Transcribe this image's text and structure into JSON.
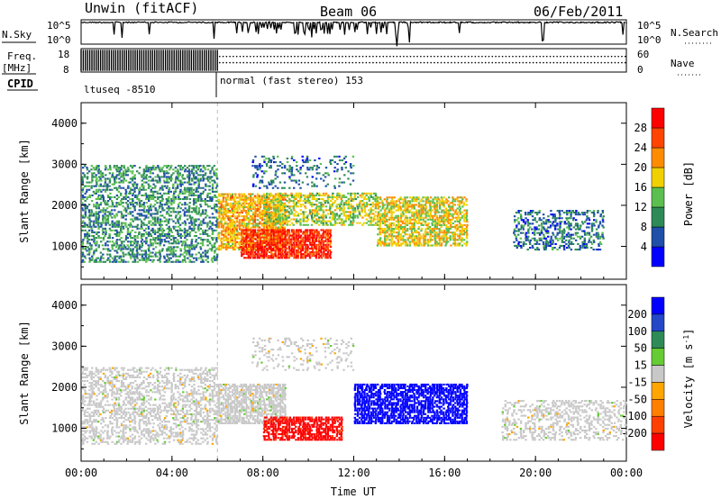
{
  "header": {
    "station": "Unwin (fitACF)",
    "beam": "Beam 06",
    "date": "06/Feb/2011"
  },
  "sky_panel": {
    "left_label": "N.Sky",
    "left_ticks": [
      "10^5",
      "10^0"
    ],
    "right_label": "N.Search",
    "right_ticks": [
      "10^5",
      "10^0"
    ]
  },
  "freq_panel": {
    "left_label_1": "Freq.",
    "left_label_2": "[MHz]",
    "left_ticks": [
      "18",
      "8"
    ],
    "right_label": "Nave",
    "right_ticks": [
      "60",
      "0"
    ]
  },
  "cpid": {
    "label": "CPID",
    "modes": [
      {
        "name": "ltuseq -8510",
        "start_hour": 0,
        "end_hour": 6
      },
      {
        "name": "normal (fast stereo) 153",
        "start_hour": 6,
        "end_hour": 24
      }
    ]
  },
  "time_axis": {
    "label": "Time UT",
    "ticks": [
      "00:00",
      "04:00",
      "08:00",
      "12:00",
      "16:00",
      "20:00",
      "00:00"
    ]
  },
  "range_axis": {
    "label": "Slant Range [km]",
    "ticks": [
      "1000",
      "2000",
      "3000",
      "4000"
    ]
  },
  "power_scale": {
    "label": "Power [dB]",
    "ticks": [
      "4",
      "8",
      "12",
      "16",
      "20",
      "24",
      "28"
    ],
    "colors": [
      "#0000ff",
      "#1f4fa8",
      "#2e8b57",
      "#5bbf4f",
      "#f0d000",
      "#ff8c00",
      "#ff4500",
      "#ff0000"
    ]
  },
  "velocity_scale": {
    "label_base": "Velocity [m s",
    "label_exp": "-1",
    "label_end": "]",
    "ticks": [
      "200",
      "100",
      "50",
      "15",
      "-15",
      "-50",
      "-100",
      "-200"
    ],
    "colors": [
      "#0000ff",
      "#2448c8",
      "#2e8b57",
      "#66cc33",
      "#c8c8c8",
      "#ffa500",
      "#ff7f00",
      "#ff4000",
      "#ff0000"
    ]
  },
  "chart_data": [
    {
      "type": "line",
      "title": "N.Sky / N.Search",
      "x": "Time UT (hours)",
      "xlim": [
        0,
        24
      ],
      "ylim_log10": [
        0,
        5
      ],
      "trace_level_log10": 4.6,
      "note_gap_hours": [
        6.8,
        14.5
      ]
    },
    {
      "type": "line",
      "title": "Freq. / Nave",
      "xlim": [
        0,
        24
      ],
      "freq_mhz_0_6h": 12,
      "nave_dotted_level": 40
    },
    {
      "type": "heatmap",
      "title": "Power [dB]",
      "xlabel": "Time UT",
      "ylabel": "Slant Range [km]",
      "xlim": [
        0,
        24
      ],
      "ylim": [
        200,
        4500
      ],
      "clim": [
        0,
        32
      ],
      "regions": [
        {
          "t": [
            0,
            6
          ],
          "r": [
            600,
            3000
          ],
          "mean": 10,
          "density": 0.55
        },
        {
          "t": [
            6,
            9
          ],
          "r": [
            900,
            2300
          ],
          "mean": 20,
          "density": 0.85
        },
        {
          "t": [
            7,
            11
          ],
          "r": [
            700,
            1400
          ],
          "mean": 28,
          "density": 0.9
        },
        {
          "t": [
            8,
            13
          ],
          "r": [
            1500,
            2300
          ],
          "mean": 16,
          "density": 0.65
        },
        {
          "t": [
            13,
            17
          ],
          "r": [
            1000,
            2200
          ],
          "mean": 18,
          "density": 0.75
        },
        {
          "t": [
            7.5,
            12
          ],
          "r": [
            2400,
            3200
          ],
          "mean": 8,
          "density": 0.25
        },
        {
          "t": [
            19,
            23
          ],
          "r": [
            900,
            1900
          ],
          "mean": 8,
          "density": 0.5
        }
      ]
    },
    {
      "type": "heatmap",
      "title": "Velocity [m s-1]",
      "xlabel": "Time UT",
      "ylabel": "Slant Range [km]",
      "xlim": [
        0,
        24
      ],
      "ylim": [
        200,
        4500
      ],
      "clim": [
        -250,
        250
      ],
      "regions": [
        {
          "t": [
            0,
            6
          ],
          "r": [
            600,
            2500
          ],
          "mean": 0,
          "density": 0.5
        },
        {
          "t": [
            6,
            9
          ],
          "r": [
            1100,
            2100
          ],
          "mean": 0,
          "density": 0.8
        },
        {
          "t": [
            8,
            11.5
          ],
          "r": [
            700,
            1300
          ],
          "mean": -220,
          "density": 0.85
        },
        {
          "t": [
            12,
            17
          ],
          "r": [
            1100,
            2100
          ],
          "mean": 230,
          "density": 0.85
        },
        {
          "t": [
            18.5,
            24
          ],
          "r": [
            700,
            1700
          ],
          "mean": 0,
          "density": 0.45
        },
        {
          "t": [
            7.5,
            12
          ],
          "r": [
            2400,
            3200
          ],
          "mean": 0,
          "density": 0.25
        }
      ]
    }
  ]
}
